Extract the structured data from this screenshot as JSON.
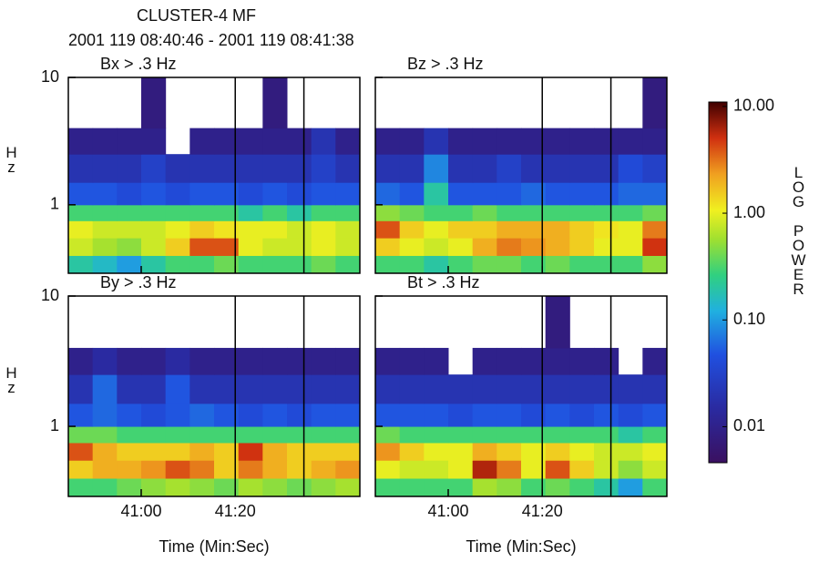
{
  "title": "CLUSTER-4 MF",
  "subtitle": "2001 119 08:40:46 - 2001 119 08:41:38",
  "colorbar": {
    "ticks": [
      {
        "value": 10,
        "label": "10.00"
      },
      {
        "value": 1,
        "label": "1.00"
      },
      {
        "value": 0.1,
        "label": "0.10"
      },
      {
        "value": 0.01,
        "label": "0.01"
      }
    ],
    "lim": [
      0.0046,
      11
    ],
    "log": true,
    "label": "LOG POWER"
  },
  "chart_data": [
    {
      "type": "heatmap",
      "title": "Bx > .3 Hz",
      "ylabel": "Hz",
      "ylim": [
        0.29,
        10
      ],
      "yticks": [
        1,
        10
      ],
      "log_y": true,
      "xlim": [
        44.5,
        106.5
      ],
      "xticks": [
        60,
        80
      ],
      "vlines": [
        80,
        94.6
      ],
      "xbins": [
        44.5,
        49.67,
        54.83,
        60,
        65.17,
        70.33,
        75.5,
        80.67,
        85.83,
        91,
        96.17,
        101.33,
        106.5
      ],
      "ybins": [
        0.29,
        0.4,
        0.55,
        0.75,
        1,
        1.5,
        2.5,
        4,
        10
      ],
      "z": [
        [
          0.2,
          0.15,
          0.1,
          0.2,
          0.3,
          0.3,
          0.4,
          0.3,
          0.3,
          0.3,
          0.4,
          0.3
        ],
        [
          0.8,
          0.6,
          0.5,
          0.8,
          1.5,
          4,
          4,
          1,
          0.8,
          0.8,
          1,
          0.8
        ],
        [
          1,
          0.8,
          0.8,
          0.8,
          1,
          1.5,
          1.2,
          1,
          1,
          0.8,
          1,
          0.8
        ],
        [
          0.3,
          0.3,
          0.3,
          0.3,
          0.3,
          0.3,
          0.3,
          0.2,
          0.3,
          0.2,
          0.3,
          0.3
        ],
        [
          0.05,
          0.05,
          0.04,
          0.05,
          0.04,
          0.05,
          0.05,
          0.04,
          0.05,
          0.04,
          0.05,
          0.05
        ],
        [
          0.02,
          0.02,
          0.02,
          0.03,
          0.02,
          0.02,
          0.02,
          0.02,
          0.02,
          0.02,
          0.03,
          0.02
        ],
        [
          0.01,
          0.01,
          0.01,
          0.01,
          null,
          0.01,
          0.01,
          0.01,
          0.01,
          0.01,
          0.02,
          0.01
        ],
        [
          null,
          null,
          null,
          0.008,
          null,
          null,
          null,
          null,
          0.008,
          null,
          null,
          null
        ]
      ]
    },
    {
      "type": "heatmap",
      "title": "Bz > .3 Hz",
      "ylim": [
        0.29,
        10
      ],
      "yticks": [
        1,
        10
      ],
      "log_y": true,
      "xlim": [
        44.5,
        106.5
      ],
      "xticks": [
        60,
        80
      ],
      "vlines": [
        80,
        94.6
      ],
      "xbins": [
        44.5,
        49.67,
        54.83,
        60,
        65.17,
        70.33,
        75.5,
        80.67,
        85.83,
        91,
        96.17,
        101.33,
        106.5
      ],
      "ybins": [
        0.29,
        0.4,
        0.55,
        0.75,
        1,
        1.5,
        2.5,
        4,
        10
      ],
      "z": [
        [
          0.3,
          0.3,
          0.2,
          0.3,
          0.4,
          0.4,
          0.3,
          0.4,
          0.3,
          0.3,
          0.3,
          0.5
        ],
        [
          1.5,
          1,
          0.8,
          1,
          2,
          3,
          2.5,
          2,
          1.5,
          1,
          1,
          5
        ],
        [
          4,
          1.5,
          1,
          1.5,
          1.5,
          2,
          2,
          2,
          1.5,
          1.2,
          1,
          3
        ],
        [
          0.5,
          0.4,
          0.3,
          0.3,
          0.4,
          0.3,
          0.3,
          0.3,
          0.3,
          0.3,
          0.3,
          0.4
        ],
        [
          0.06,
          0.05,
          0.2,
          0.05,
          0.05,
          0.05,
          0.06,
          0.05,
          0.05,
          0.05,
          0.06,
          0.06
        ],
        [
          0.02,
          0.02,
          0.08,
          0.02,
          0.02,
          0.03,
          0.02,
          0.02,
          0.02,
          0.02,
          0.04,
          0.03
        ],
        [
          0.01,
          0.01,
          0.02,
          0.01,
          0.01,
          0.01,
          0.01,
          0.01,
          0.01,
          0.01,
          0.01,
          0.01
        ],
        [
          null,
          null,
          null,
          null,
          null,
          null,
          null,
          null,
          null,
          null,
          null,
          0.008
        ]
      ]
    },
    {
      "type": "heatmap",
      "title": "By > .3 Hz",
      "ylabel": "Hz",
      "xlabel": "Time (Min:Sec)",
      "ylim": [
        0.29,
        10
      ],
      "yticks": [
        1,
        10
      ],
      "log_y": true,
      "xlim": [
        44.5,
        106.5
      ],
      "xticks": [
        {
          "value": 60,
          "label": "41:00"
        },
        {
          "value": 80,
          "label": "41:20"
        }
      ],
      "vlines": [
        80,
        94.6
      ],
      "xbins": [
        44.5,
        49.67,
        54.83,
        60,
        65.17,
        70.33,
        75.5,
        80.67,
        85.83,
        91,
        96.17,
        101.33,
        106.5
      ],
      "ybins": [
        0.29,
        0.4,
        0.55,
        0.75,
        1,
        1.5,
        2.5,
        4,
        10
      ],
      "z": [
        [
          0.3,
          0.3,
          0.4,
          0.5,
          0.6,
          0.5,
          0.4,
          0.6,
          0.5,
          0.4,
          0.5,
          0.6
        ],
        [
          1.5,
          2,
          2,
          2.5,
          4,
          3,
          1.5,
          3,
          2,
          1.5,
          2,
          2.5
        ],
        [
          4,
          2,
          1.5,
          1.5,
          1.5,
          2,
          1.5,
          5,
          2,
          1.5,
          1.5,
          1.5
        ],
        [
          0.4,
          0.4,
          0.3,
          0.3,
          0.3,
          0.3,
          0.3,
          0.3,
          0.3,
          0.3,
          0.3,
          0.3
        ],
        [
          0.05,
          0.06,
          0.05,
          0.04,
          0.05,
          0.06,
          0.05,
          0.04,
          0.05,
          0.04,
          0.05,
          0.05
        ],
        [
          0.02,
          0.06,
          0.02,
          0.02,
          0.05,
          0.02,
          0.02,
          0.02,
          0.02,
          0.02,
          0.02,
          0.02
        ],
        [
          0.01,
          0.015,
          0.01,
          0.01,
          0.015,
          0.01,
          0.01,
          0.01,
          0.01,
          0.01,
          0.01,
          0.01
        ],
        [
          null,
          null,
          null,
          null,
          null,
          null,
          null,
          null,
          null,
          null,
          null,
          null
        ]
      ]
    },
    {
      "type": "heatmap",
      "title": "Bt > .3 Hz",
      "xlabel": "Time (Min:Sec)",
      "ylim": [
        0.29,
        10
      ],
      "yticks": [
        1,
        10
      ],
      "log_y": true,
      "xlim": [
        44.5,
        106.5
      ],
      "xticks": [
        {
          "value": 60,
          "label": "41:00"
        },
        {
          "value": 80,
          "label": "41:20"
        }
      ],
      "vlines": [
        80,
        94.6
      ],
      "xbins": [
        44.5,
        49.67,
        54.83,
        60,
        65.17,
        70.33,
        75.5,
        80.67,
        85.83,
        91,
        96.17,
        101.33,
        106.5
      ],
      "ybins": [
        0.29,
        0.4,
        0.55,
        0.75,
        1,
        1.5,
        2.5,
        4,
        10
      ],
      "z": [
        [
          0.3,
          0.3,
          0.3,
          0.3,
          0.6,
          0.5,
          0.3,
          0.4,
          0.3,
          0.2,
          0.1,
          0.3
        ],
        [
          1,
          0.8,
          0.8,
          1,
          6,
          3,
          1,
          4,
          1.5,
          0.8,
          0.5,
          0.8
        ],
        [
          2.5,
          1.5,
          1,
          1,
          2,
          1.5,
          1,
          1.5,
          1,
          0.8,
          0.8,
          1
        ],
        [
          0.4,
          0.3,
          0.3,
          0.3,
          0.3,
          0.3,
          0.3,
          0.3,
          0.3,
          0.3,
          0.2,
          0.3
        ],
        [
          0.05,
          0.05,
          0.05,
          0.04,
          0.05,
          0.05,
          0.04,
          0.05,
          0.04,
          0.05,
          0.04,
          0.05
        ],
        [
          0.02,
          0.02,
          0.02,
          0.02,
          0.02,
          0.02,
          0.02,
          0.02,
          0.02,
          0.02,
          0.02,
          0.02
        ],
        [
          0.01,
          0.01,
          0.01,
          null,
          0.01,
          0.01,
          0.01,
          0.01,
          0.01,
          0.01,
          null,
          0.01
        ],
        [
          null,
          null,
          null,
          null,
          null,
          null,
          null,
          0.008,
          null,
          null,
          null,
          null
        ]
      ]
    }
  ]
}
